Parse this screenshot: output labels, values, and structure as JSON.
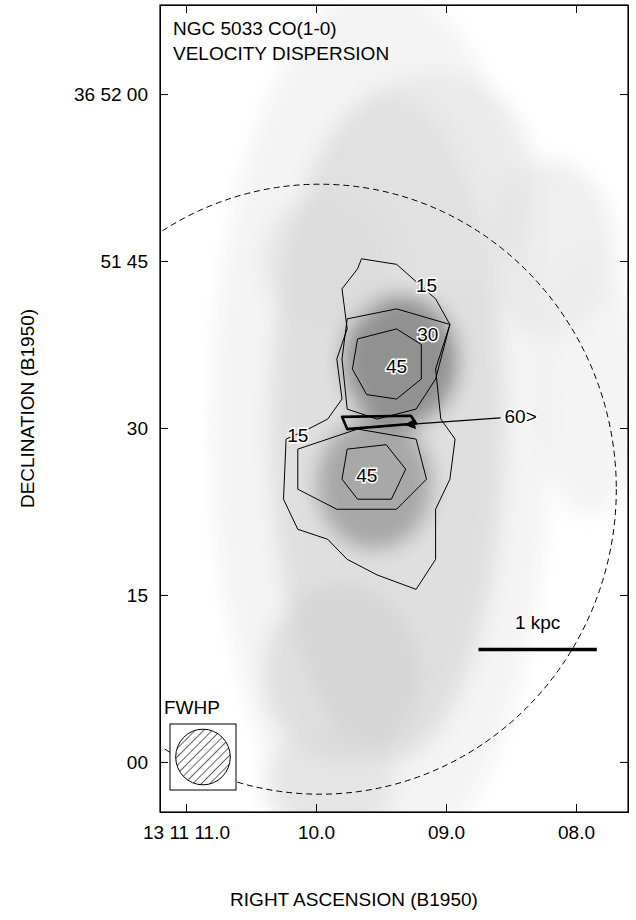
{
  "chart_data": {
    "type": "contour",
    "title": "NGC 5033 CO(1-0)",
    "subtitle": "VELOCITY DISPERSION",
    "x_label": "RIGHT ASCENSION (B1950)",
    "y_label": "DECLINATION (B1950)",
    "xlim": [
      11.2,
      7.6
    ],
    "ylim": [
      -4.5,
      68
    ],
    "xticks": [
      {
        "value": 11,
        "label": "13 11 11.0"
      },
      {
        "value": 10,
        "label": "10.0"
      },
      {
        "value": 9,
        "label": "09.0"
      },
      {
        "value": 8,
        "label": "08.0"
      }
    ],
    "yticks": [
      {
        "value": 60,
        "label": "36 52 00"
      },
      {
        "value": 45,
        "label": "51 45"
      },
      30,
      15,
      {
        "value": 0,
        "label": "00"
      }
    ],
    "grayscale": [
      {
        "x": 9.5,
        "y": 30,
        "rx": 1.3,
        "ry": 40,
        "intensity": 0.15
      },
      {
        "x": 9.45,
        "y": 30,
        "rx": 0.9,
        "ry": 30,
        "intensity": 0.3
      },
      {
        "x": 9.35,
        "y": 36,
        "rx": 0.45,
        "ry": 6,
        "intensity": 0.75
      },
      {
        "x": 9.55,
        "y": 25,
        "rx": 0.45,
        "ry": 6,
        "intensity": 0.6
      },
      {
        "x": 9.1,
        "y": 52,
        "rx": 0.8,
        "ry": 10,
        "intensity": 0.2
      },
      {
        "x": 9.8,
        "y": 8,
        "rx": 0.6,
        "ry": 8,
        "intensity": 0.3
      },
      {
        "x": 9.9,
        "y": -2,
        "rx": 0.5,
        "ry": 5,
        "intensity": 0.25
      },
      {
        "x": 9.9,
        "y": 45,
        "rx": 0.5,
        "ry": 6,
        "intensity": 0.25
      },
      {
        "x": 8.2,
        "y": 46,
        "rx": 0.5,
        "ry": 8,
        "intensity": 0.2
      },
      {
        "x": 7.9,
        "y": 34,
        "rx": 0.4,
        "ry": 12,
        "intensity": 0.15
      }
    ],
    "contours": [
      {
        "level": 15,
        "ra": [
          9.65,
          9.38,
          9.08,
          8.97,
          9.08,
          9.04,
          8.93,
          8.97,
          9.08,
          9.08,
          9.23,
          9.53,
          9.76,
          9.91,
          10.14,
          10.25,
          10.23,
          10.06,
          9.91,
          9.8,
          9.84,
          9.76,
          9.8,
          9.68
        ],
        "dec": [
          45.2,
          44.7,
          41.6,
          39.3,
          35.3,
          30.8,
          29.0,
          25.4,
          22.7,
          18.2,
          15.5,
          16.8,
          18.2,
          20.0,
          20.9,
          23.6,
          29.0,
          29.9,
          30.8,
          32.6,
          36.2,
          38.9,
          42.5,
          44.3
        ]
      },
      {
        "level": 30,
        "ra": [
          9.76,
          9.38,
          8.97,
          9.08,
          9.23,
          9.53,
          9.76,
          9.8
        ],
        "dec": [
          39.8,
          40.7,
          39.3,
          34.4,
          31.7,
          30.8,
          31.7,
          36.2
        ]
      },
      {
        "level": 30,
        "ra": [
          10.14,
          9.68,
          9.23,
          9.15,
          9.38,
          9.84,
          10.14
        ],
        "dec": [
          28.1,
          29.9,
          29.0,
          25.4,
          22.7,
          22.7,
          24.5
        ]
      },
      {
        "level": 45,
        "ra": [
          9.68,
          9.38,
          9.19,
          9.19,
          9.38,
          9.61,
          9.72
        ],
        "dec": [
          38.0,
          38.9,
          37.5,
          34.4,
          32.6,
          33.0,
          35.3
        ]
      },
      {
        "level": 45,
        "ra": [
          9.76,
          9.46,
          9.31,
          9.42,
          9.68,
          9.8
        ],
        "dec": [
          28.1,
          28.5,
          26.3,
          23.6,
          23.6,
          25.4
        ]
      },
      {
        "level": 60,
        "ra": [
          9.8,
          9.27,
          9.23,
          9.76
        ],
        "dec": [
          31.0,
          31.1,
          30.4,
          29.9
        ]
      }
    ],
    "contour_labels": [
      {
        "label": "15",
        "x": 9.15,
        "y": 42.7
      },
      {
        "label": "15",
        "x": 10.14,
        "y": 29.2
      },
      {
        "label": "30",
        "x": 9.14,
        "y": 38.3
      },
      {
        "label": "45",
        "x": 9.38,
        "y": 35.4
      },
      {
        "label": "45",
        "x": 9.61,
        "y": 25.6
      },
      {
        "label": "60>",
        "x": 8.55,
        "y": 30.9,
        "arrow_to": [
          9.31,
          30.3
        ]
      }
    ],
    "primary_beam": {
      "x": 9.97,
      "y": 24.5,
      "radius_x": 2.28,
      "radius_y": 27.4,
      "line_style": "dashed"
    },
    "scale_bar": {
      "label": "1 kpc",
      "x": [
        8.75,
        7.84
      ],
      "y": 10.1
    },
    "beam": {
      "label": "FWHP",
      "diameter_x": 0.42,
      "diameter_y": 5
    }
  }
}
